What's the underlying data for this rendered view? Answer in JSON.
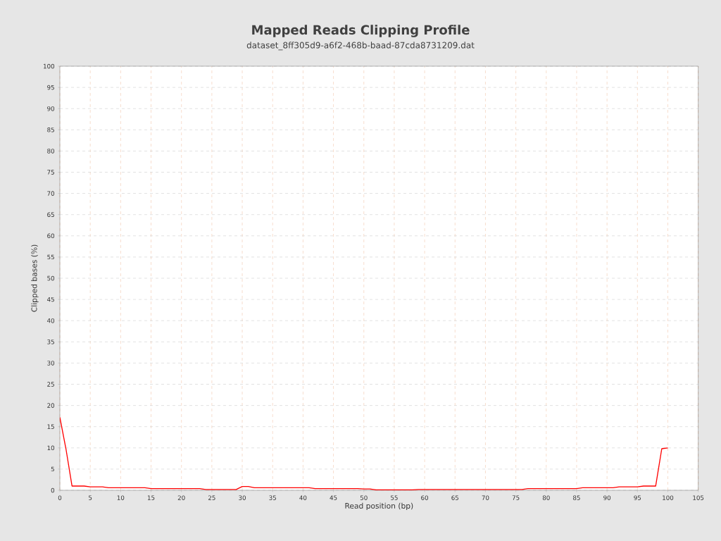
{
  "chart_data": {
    "type": "line",
    "title": "Mapped Reads Clipping Profile",
    "subtitle": "dataset_8ff305d9-a6f2-468b-baad-87cda8731209.dat",
    "xlabel": "Read position (bp)",
    "ylabel": "Clipped bases (%)",
    "x": [
      0,
      1,
      2,
      3,
      4,
      5,
      6,
      7,
      8,
      9,
      10,
      11,
      12,
      13,
      14,
      15,
      16,
      17,
      18,
      19,
      20,
      21,
      22,
      23,
      24,
      25,
      26,
      27,
      28,
      29,
      30,
      31,
      32,
      33,
      34,
      35,
      36,
      37,
      38,
      39,
      40,
      41,
      42,
      43,
      44,
      45,
      46,
      47,
      48,
      49,
      50,
      51,
      52,
      53,
      54,
      55,
      56,
      57,
      58,
      59,
      60,
      61,
      62,
      63,
      64,
      65,
      66,
      67,
      68,
      69,
      70,
      71,
      72,
      73,
      74,
      75,
      76,
      77,
      78,
      79,
      80,
      81,
      82,
      83,
      84,
      85,
      86,
      87,
      88,
      89,
      90,
      91,
      92,
      93,
      94,
      95,
      96,
      97,
      98,
      99,
      100
    ],
    "series": [
      {
        "color": "#ff0000",
        "values": [
          17.2,
          9.8,
          1.0,
          1.0,
          1.0,
          0.8,
          0.8,
          0.8,
          0.6,
          0.6,
          0.6,
          0.6,
          0.6,
          0.6,
          0.6,
          0.4,
          0.4,
          0.4,
          0.4,
          0.4,
          0.4,
          0.4,
          0.4,
          0.4,
          0.2,
          0.2,
          0.2,
          0.2,
          0.2,
          0.2,
          0.9,
          0.9,
          0.6,
          0.6,
          0.6,
          0.6,
          0.6,
          0.6,
          0.6,
          0.6,
          0.6,
          0.6,
          0.4,
          0.4,
          0.4,
          0.4,
          0.4,
          0.4,
          0.4,
          0.4,
          0.3,
          0.3,
          0.1,
          0.1,
          0.1,
          0.1,
          0.1,
          0.1,
          0.1,
          0.2,
          0.2,
          0.2,
          0.2,
          0.2,
          0.2,
          0.2,
          0.2,
          0.2,
          0.2,
          0.2,
          0.2,
          0.2,
          0.2,
          0.2,
          0.2,
          0.2,
          0.2,
          0.4,
          0.4,
          0.4,
          0.4,
          0.4,
          0.4,
          0.4,
          0.4,
          0.4,
          0.6,
          0.6,
          0.6,
          0.6,
          0.6,
          0.6,
          0.8,
          0.8,
          0.8,
          0.8,
          1.0,
          1.0,
          1.0,
          9.8,
          10.0
        ]
      }
    ],
    "xlim": [
      0,
      105
    ],
    "ylim": [
      0,
      100
    ],
    "xticks": [
      0,
      5,
      10,
      15,
      20,
      25,
      30,
      35,
      40,
      45,
      50,
      55,
      60,
      65,
      70,
      75,
      80,
      85,
      90,
      95,
      100,
      105
    ],
    "yticks": [
      0,
      5,
      10,
      15,
      20,
      25,
      30,
      35,
      40,
      45,
      50,
      55,
      60,
      65,
      70,
      75,
      80,
      85,
      90,
      95,
      100
    ],
    "grid": true,
    "marker": "none",
    "line_style": "solid"
  }
}
